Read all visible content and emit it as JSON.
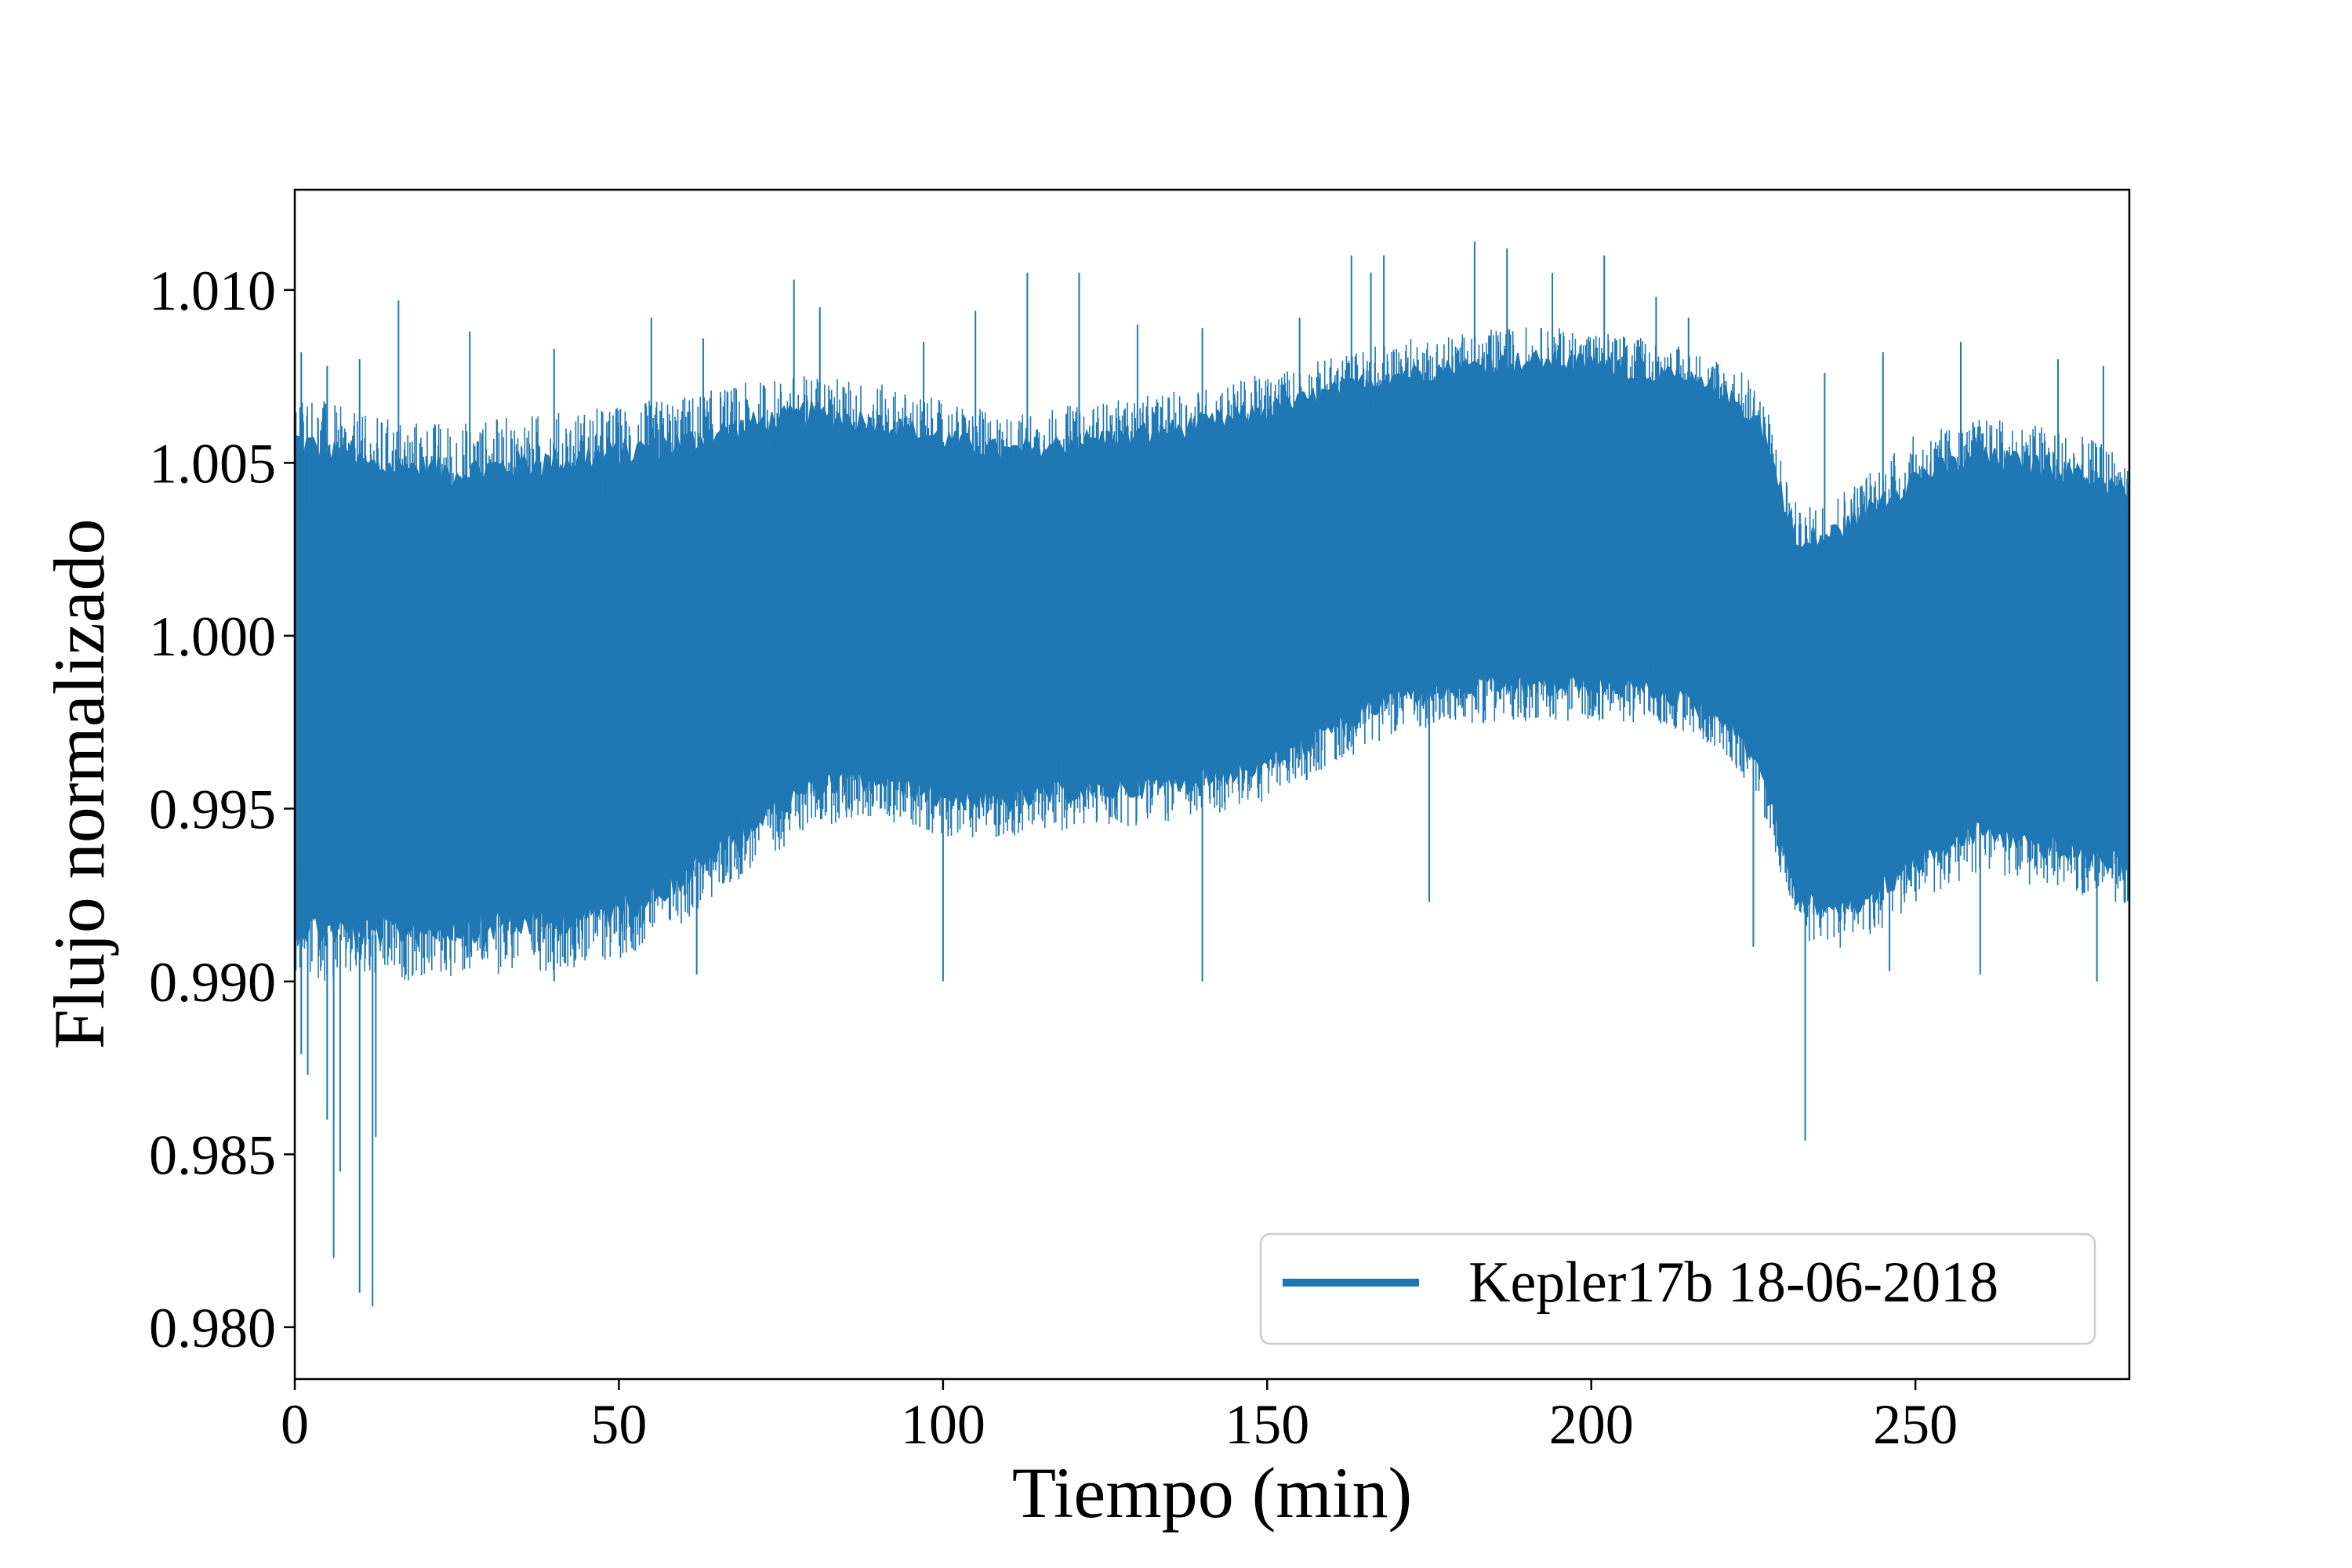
{
  "chart_data": {
    "type": "line",
    "title": "",
    "xlabel": "Tiempo (min)",
    "ylabel": "Flujo normalizado",
    "xlim": [
      0,
      283
    ],
    "ylim": [
      0.9785,
      1.0129
    ],
    "xticks": [
      0,
      50,
      100,
      150,
      200,
      250
    ],
    "xtick_labels": [
      "0",
      "50",
      "100",
      "150",
      "200",
      "250"
    ],
    "yticks": [
      0.98,
      0.985,
      0.99,
      0.995,
      1.0,
      1.005,
      1.01
    ],
    "ytick_labels": [
      "0.980",
      "0.985",
      "0.990",
      "0.995",
      "1.000",
      "1.005",
      "1.010"
    ],
    "grid": false,
    "legend_position": "lower-right",
    "series": [
      {
        "name": "Kepler17b 18-06-2018",
        "color": "#1f77b4",
        "envelope": {
          "x": [
            0,
            10,
            25,
            40,
            50,
            60,
            70,
            80,
            90,
            100,
            110,
            120,
            130,
            140,
            150,
            160,
            170,
            180,
            190,
            200,
            210,
            220,
            226,
            232,
            240,
            250,
            260,
            270,
            283
          ],
          "upper": [
            1.0068,
            1.006,
            1.0058,
            1.0061,
            1.0063,
            1.0066,
            1.007,
            1.0073,
            1.007,
            1.0065,
            1.0061,
            1.0064,
            1.0066,
            1.0069,
            1.0073,
            1.0078,
            1.0083,
            1.0085,
            1.0087,
            1.0086,
            1.0083,
            1.0078,
            1.007,
            1.0033,
            1.0041,
            1.0055,
            1.006,
            1.0058,
            1.005
          ],
          "lower": [
            0.9905,
            0.9903,
            0.9905,
            0.9907,
            0.991,
            0.992,
            0.9935,
            0.9948,
            0.995,
            0.9945,
            0.9944,
            0.9947,
            0.9948,
            0.995,
            0.9955,
            0.9965,
            0.9975,
            0.9977,
            0.9978,
            0.9978,
            0.9977,
            0.997,
            0.9955,
            0.9915,
            0.9912,
            0.9925,
            0.9935,
            0.993,
            0.9925
          ]
        },
        "spikes_up": [
          {
            "x": 1,
            "y": 1.0082
          },
          {
            "x": 5,
            "y": 1.0078
          },
          {
            "x": 10,
            "y": 1.008
          },
          {
            "x": 16,
            "y": 1.0097
          },
          {
            "x": 27,
            "y": 1.0088
          },
          {
            "x": 40,
            "y": 1.0083
          },
          {
            "x": 55,
            "y": 1.0092
          },
          {
            "x": 63,
            "y": 1.0086
          },
          {
            "x": 77,
            "y": 1.0103
          },
          {
            "x": 81,
            "y": 1.0095
          },
          {
            "x": 97,
            "y": 1.0085
          },
          {
            "x": 105,
            "y": 1.0094
          },
          {
            "x": 113,
            "y": 1.0105
          },
          {
            "x": 121,
            "y": 1.0105
          },
          {
            "x": 130,
            "y": 1.009
          },
          {
            "x": 140,
            "y": 1.0089
          },
          {
            "x": 155,
            "y": 1.0092
          },
          {
            "x": 163,
            "y": 1.011
          },
          {
            "x": 166,
            "y": 1.0105
          },
          {
            "x": 168,
            "y": 1.011
          },
          {
            "x": 182,
            "y": 1.0114
          },
          {
            "x": 187,
            "y": 1.0112
          },
          {
            "x": 194,
            "y": 1.0105
          },
          {
            "x": 202,
            "y": 1.011
          },
          {
            "x": 210,
            "y": 1.0098
          },
          {
            "x": 215,
            "y": 1.0092
          },
          {
            "x": 236,
            "y": 1.0076
          },
          {
            "x": 245,
            "y": 1.0082
          },
          {
            "x": 257,
            "y": 1.0085
          },
          {
            "x": 272,
            "y": 1.008
          },
          {
            "x": 279,
            "y": 1.0078
          }
        ],
        "spikes_down": [
          {
            "x": 1,
            "y": 0.9879
          },
          {
            "x": 2,
            "y": 0.9873
          },
          {
            "x": 5,
            "y": 0.986
          },
          {
            "x": 6,
            "y": 0.982
          },
          {
            "x": 7,
            "y": 0.9845
          },
          {
            "x": 10,
            "y": 0.981
          },
          {
            "x": 12,
            "y": 0.9806
          },
          {
            "x": 12.5,
            "y": 0.9855
          },
          {
            "x": 40,
            "y": 0.99
          },
          {
            "x": 62,
            "y": 0.9902
          },
          {
            "x": 100,
            "y": 0.99
          },
          {
            "x": 140,
            "y": 0.99
          },
          {
            "x": 175,
            "y": 0.9923
          },
          {
            "x": 225,
            "y": 0.991
          },
          {
            "x": 233,
            "y": 0.9854
          },
          {
            "x": 246,
            "y": 0.9903
          },
          {
            "x": 260,
            "y": 0.9902
          },
          {
            "x": 278,
            "y": 0.99
          }
        ]
      }
    ]
  }
}
